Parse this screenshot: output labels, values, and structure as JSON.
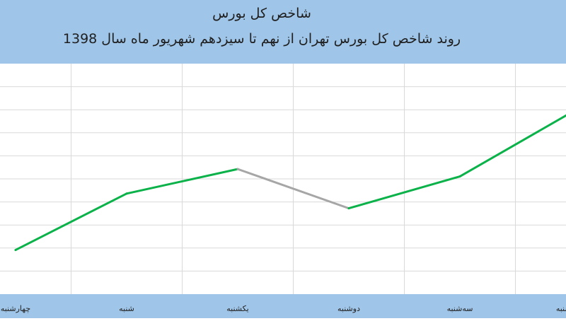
{
  "chart_data": {
    "type": "line",
    "title": "شاخص کل بورس",
    "subtitle": "روند شاخص کل بورس تهران از نهم تا سیزدهم شهریور ماه سال 1398",
    "categories": [
      "چهارشنبه",
      "شنبه",
      "یکشنبه",
      "دوشنبه",
      "سه‌شنبه",
      "چهارشنبه"
    ],
    "values": [
      1.8,
      4.1,
      5.1,
      3.5,
      4.8,
      7.4
    ],
    "segment_colors": [
      "#0bb24a",
      "#0bb24a",
      "#a6a6a6",
      "#0bb24a",
      "#0bb24a"
    ],
    "ylim": [
      0,
      9.4
    ],
    "grid": true,
    "colors": {
      "header_band": "#9fc5e8",
      "gridline": "#d9d9d9",
      "up": "#0bb24a",
      "down": "#a6a6a6"
    }
  }
}
